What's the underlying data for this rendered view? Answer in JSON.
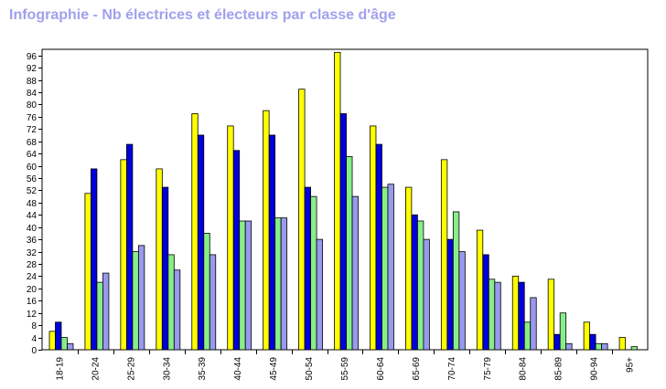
{
  "title": "Infographie - Nb électrices et électeurs par classe d'âge",
  "colors": {
    "title": "#a0a0ee",
    "axis": "#000000",
    "series": [
      "#ffff00",
      "#0000dd",
      "#88ee88",
      "#9999ee"
    ]
  },
  "chart_data": {
    "type": "bar",
    "title": "Infographie - Nb électrices et électeurs par classe d'âge",
    "xlabel": "",
    "ylabel": "",
    "ylim": [
      0,
      98
    ],
    "yticks": [
      0,
      4,
      8,
      12,
      16,
      20,
      24,
      28,
      32,
      36,
      40,
      44,
      48,
      52,
      56,
      60,
      64,
      68,
      72,
      76,
      80,
      84,
      88,
      92,
      96
    ],
    "grid": false,
    "legend": "none",
    "categories": [
      "18-19",
      "20-24",
      "25-29",
      "30-34",
      "35-39",
      "40-44",
      "45-49",
      "50-54",
      "55-59",
      "60-64",
      "65-69",
      "70-74",
      "75-79",
      "80-84",
      "85-89",
      "90-94",
      "95+"
    ],
    "series": [
      {
        "color": "#ffff00",
        "values": [
          6,
          51,
          62,
          59,
          77,
          73,
          78,
          85,
          97,
          73,
          53,
          62,
          39,
          24,
          23,
          9,
          4
        ]
      },
      {
        "color": "#0000dd",
        "values": [
          9,
          59,
          67,
          53,
          70,
          65,
          70,
          53,
          77,
          67,
          44,
          36,
          31,
          22,
          5,
          5,
          0
        ]
      },
      {
        "color": "#88ee88",
        "values": [
          4,
          22,
          32,
          31,
          38,
          42,
          43,
          50,
          63,
          53,
          42,
          45,
          23,
          9,
          12,
          2,
          1
        ]
      },
      {
        "color": "#9999ee",
        "values": [
          2,
          25,
          34,
          26,
          31,
          42,
          43,
          36,
          50,
          54,
          36,
          32,
          22,
          17,
          2,
          2,
          0
        ]
      }
    ]
  }
}
